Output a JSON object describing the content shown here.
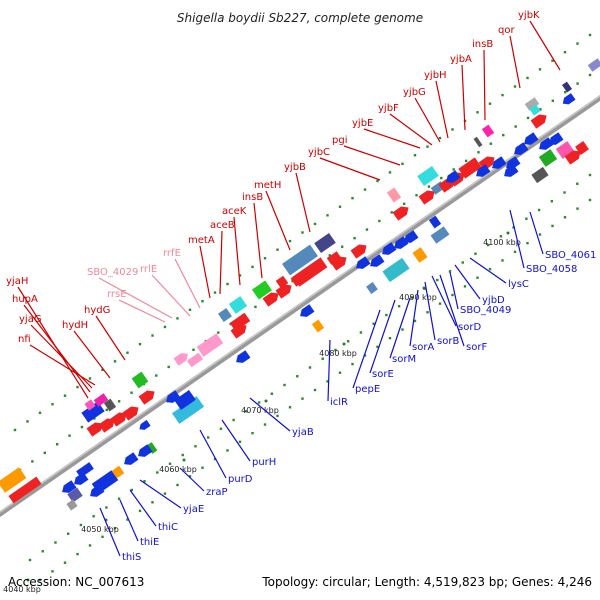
{
  "title": "Shigella boydii Sb227, complete genome",
  "footer": {
    "accession": "Accession: NC_007613",
    "summary": "Topology: circular; Length: 4,519,823 bp; Genes: 4,246"
  },
  "colors": {
    "top_label": "#cc0000",
    "rna_label": "#ee8899",
    "bottom_label": "#1111cc",
    "backbone": "#999999"
  },
  "ticks": [
    "4040 kbp",
    "4050 kbp",
    "4060 kbp",
    "4070 kbp",
    "4080 kbp",
    "4090 kbp",
    "4100 kbp"
  ],
  "top_labels": [
    "nfi",
    "yjaG",
    "hupA",
    "yjaH",
    "hydH",
    "hydG",
    "rrsE",
    "SBO_4029",
    "rrlE",
    "rrfE",
    "metA",
    "aceB",
    "aceK",
    "insB",
    "metH",
    "yjbB",
    "yjbC",
    "pgi",
    "yjbE",
    "yjbF",
    "yjbG",
    "yjbH",
    "yjbA",
    "insB",
    "qor",
    "yjbK"
  ],
  "bottom_labels": [
    "thiS",
    "thiE",
    "thiC",
    "yjaE",
    "zraP",
    "purD",
    "purH",
    "yjaB",
    "iclR",
    "pepE",
    "sorE",
    "sorM",
    "sorA",
    "sorB",
    "sorD",
    "sorF",
    "SBO_4049",
    "yjbD",
    "lysC",
    "SBO_4058",
    "SBO_4061"
  ]
}
